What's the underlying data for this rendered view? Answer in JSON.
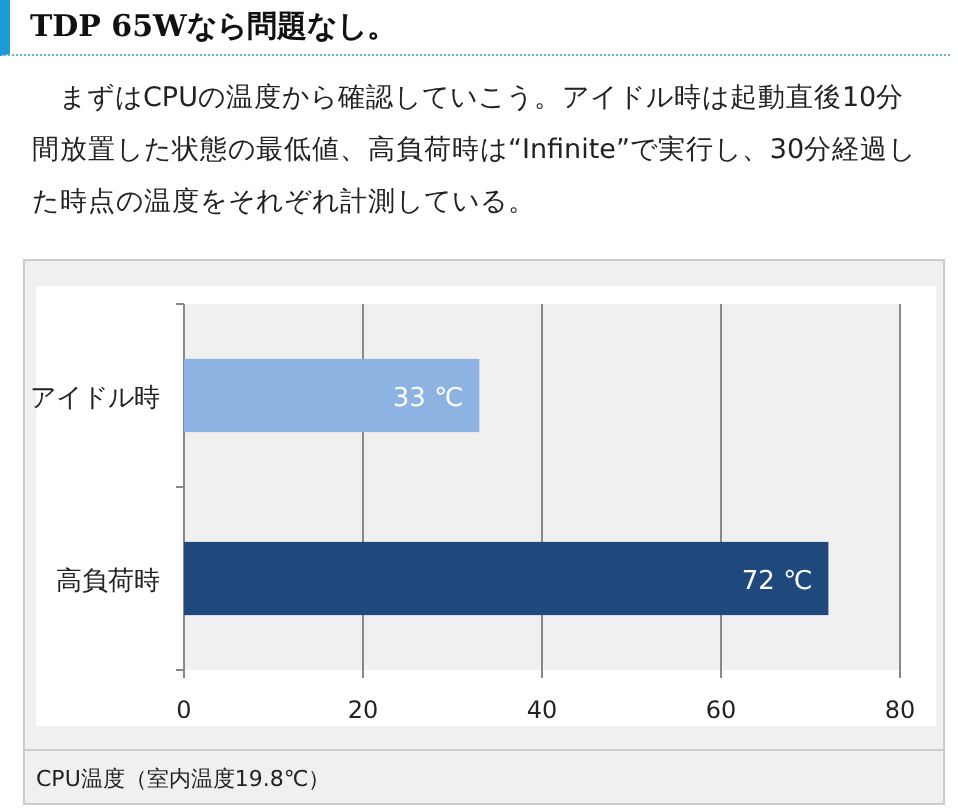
{
  "chart_data": {
    "type": "bar",
    "orientation": "horizontal",
    "title": "TDP 65Wなら問題なし。",
    "subtitle": "まずはCPUの温度から確認していこう。アイドル時は起動直後10分間放置した状態の最低値、高負荷時は“Infinite”で実行し、30分経過した時点の温度をそれぞれ計測している。",
    "categories": [
      "アイドル時",
      "高負荷時"
    ],
    "values": [
      33,
      72
    ],
    "colors": [
      "#8db3e2",
      "#1f497d"
    ],
    "value_labels": [
      "33 ℃",
      "72 ℃"
    ],
    "xlim": [
      0,
      80
    ],
    "xticks": [
      0,
      20,
      40,
      60,
      80
    ],
    "grid": "x",
    "annotations": [
      "CPU温度（室内温度19.8℃）"
    ]
  }
}
